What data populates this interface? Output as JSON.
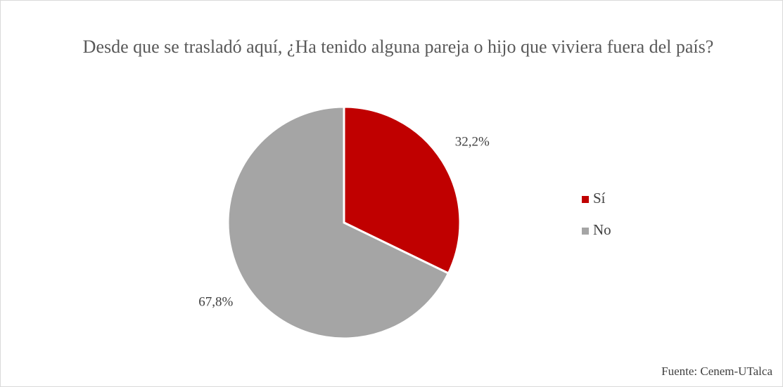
{
  "chart_data": {
    "type": "pie",
    "title": "Desde que se trasladó aquí, ¿Ha tenido alguna pareja o hijo que viviera fuera del país?",
    "categories": [
      "Sí",
      "No"
    ],
    "values": [
      32.2,
      67.8
    ],
    "value_labels": [
      "32,2%",
      "67,8%"
    ],
    "colors": [
      "#c00000",
      "#a5a5a5"
    ],
    "legend": "right",
    "source": "Fuente: Cenem-UTalca"
  }
}
